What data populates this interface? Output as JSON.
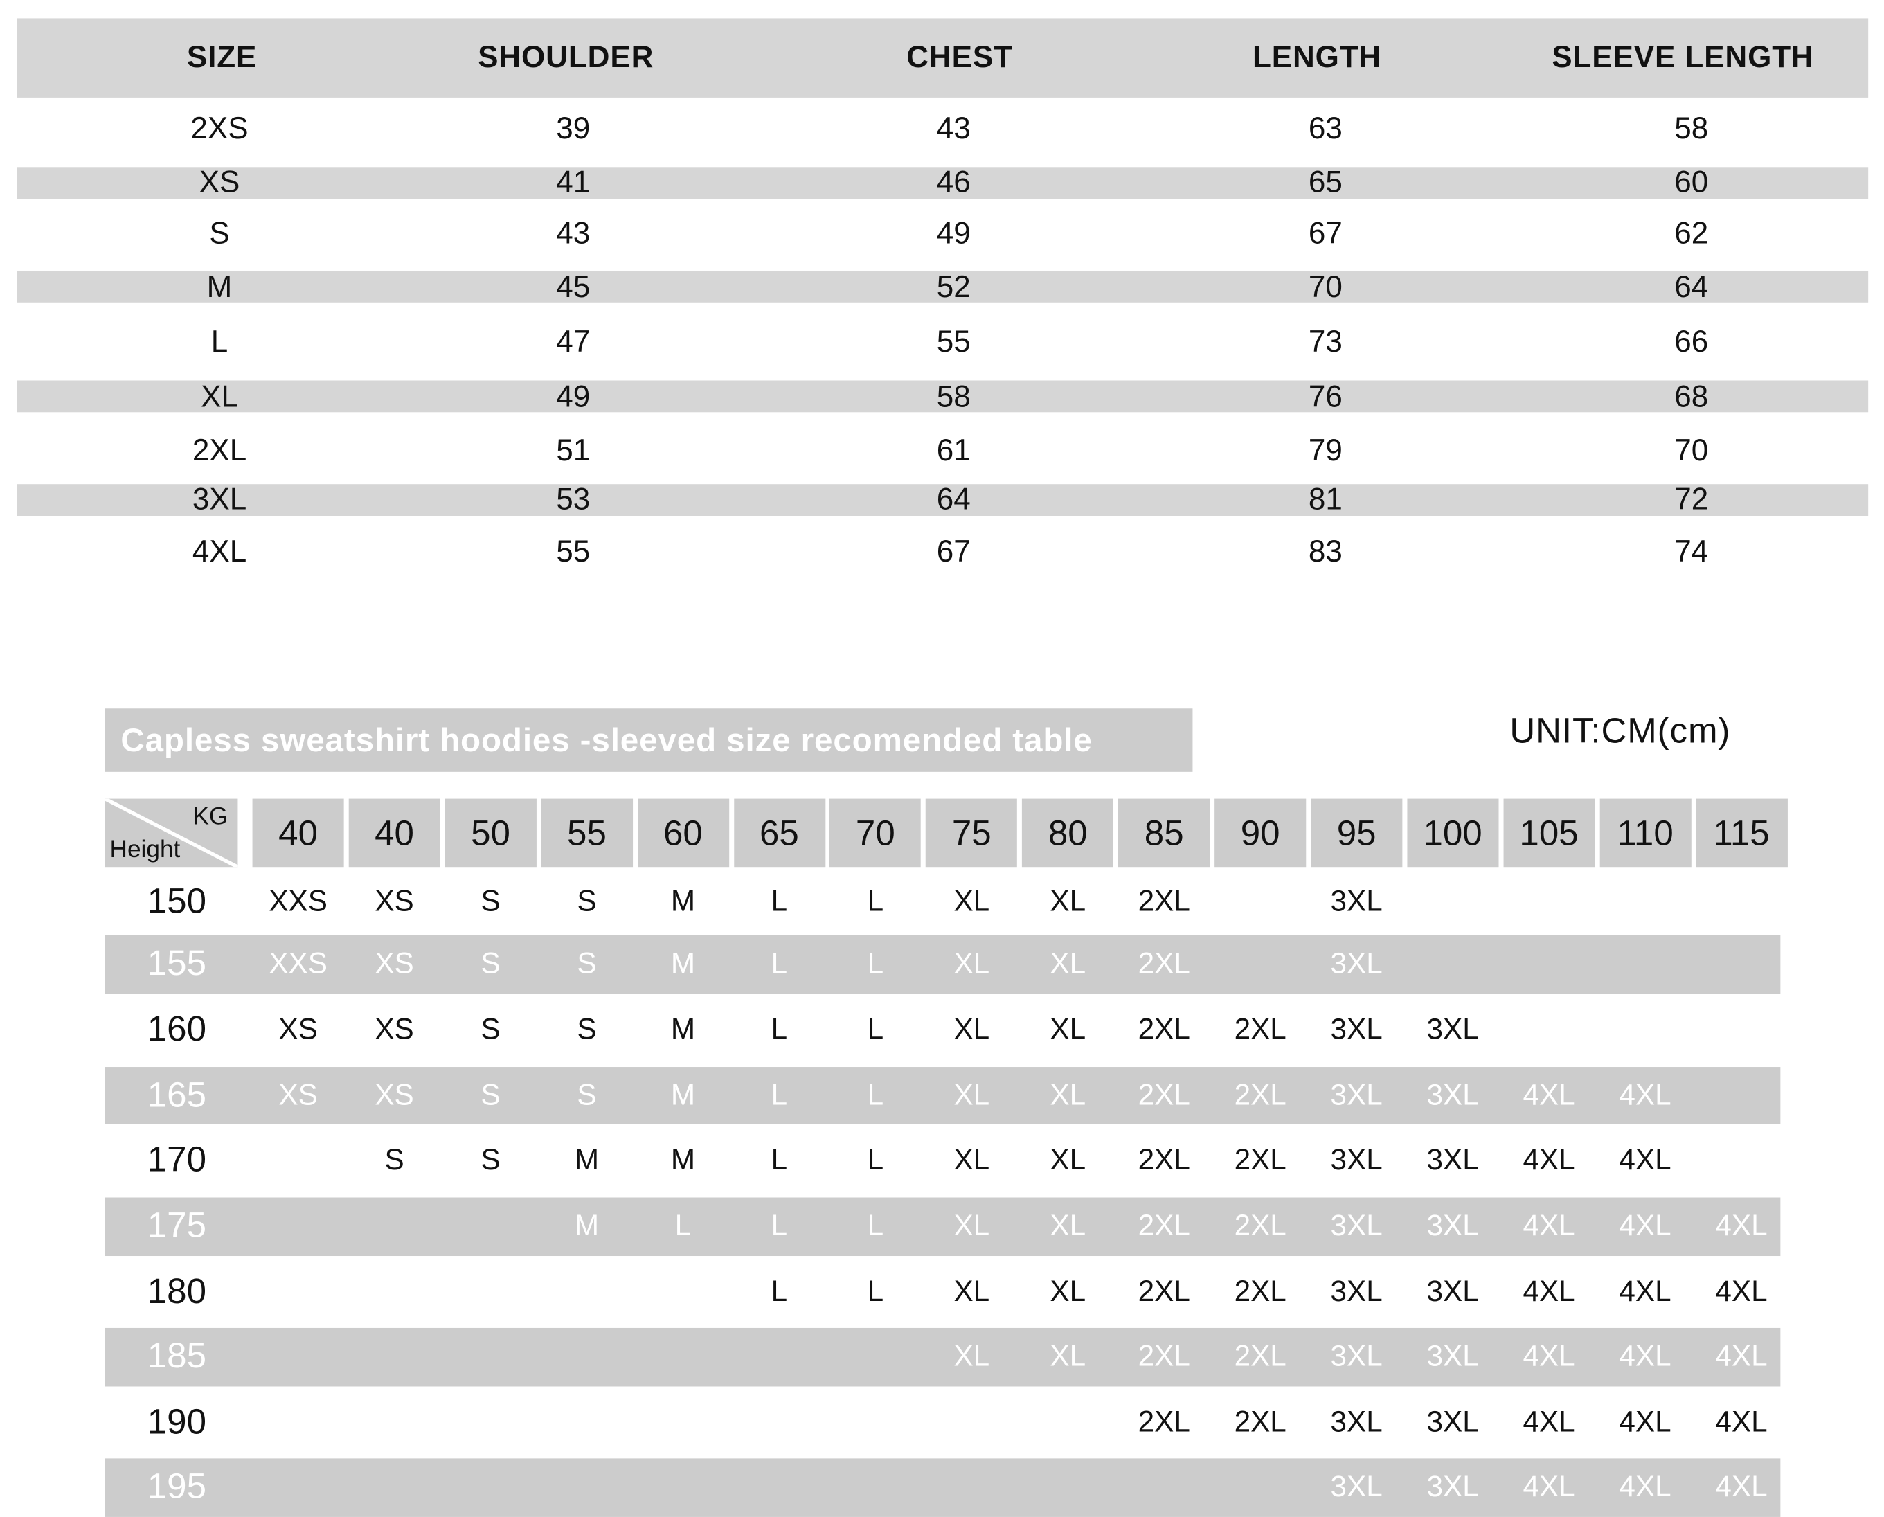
{
  "measurement_table": {
    "headers": [
      "SIZE",
      "SHOULDER",
      "CHEST",
      "LENGTH",
      "SLEEVE LENGTH"
    ],
    "rows": [
      [
        "2XS",
        "39",
        "43",
        "63",
        "58"
      ],
      [
        "XS",
        "41",
        "46",
        "65",
        "60"
      ],
      [
        "S",
        "43",
        "49",
        "67",
        "62"
      ],
      [
        "M",
        "45",
        "52",
        "70",
        "64"
      ],
      [
        "L",
        "47",
        "55",
        "73",
        "66"
      ],
      [
        "XL",
        "49",
        "58",
        "76",
        "68"
      ],
      [
        "2XL",
        "51",
        "61",
        "79",
        "70"
      ],
      [
        "3XL",
        "53",
        "64",
        "81",
        "72"
      ],
      [
        "4XL",
        "55",
        "67",
        "83",
        "74"
      ]
    ],
    "header_bg": "#d6d6d6"
  },
  "recommend_table": {
    "title": "Capless sweatshirt hoodies -sleeved size recomended table",
    "unit": "UNIT:CM(cm)",
    "corner_top": "KG",
    "corner_bottom": "Height",
    "weights": [
      "40",
      "40",
      "50",
      "55",
      "60",
      "65",
      "70",
      "75",
      "80",
      "85",
      "90",
      "95",
      "100",
      "105",
      "110",
      "115"
    ],
    "rows": [
      {
        "height": "150",
        "sizes": [
          "XXS",
          "XS",
          "S",
          "S",
          "M",
          "L",
          "L",
          "XL",
          "XL",
          "2XL",
          "",
          "3XL",
          "",
          "",
          "",
          ""
        ]
      },
      {
        "height": "155",
        "sizes": [
          "XXS",
          "XS",
          "S",
          "S",
          "M",
          "L",
          "L",
          "XL",
          "XL",
          "2XL",
          "",
          "3XL",
          "",
          "",
          "",
          ""
        ]
      },
      {
        "height": "160",
        "sizes": [
          "XS",
          "XS",
          "S",
          "S",
          "M",
          "L",
          "L",
          "XL",
          "XL",
          "2XL",
          "2XL",
          "3XL",
          "3XL",
          "",
          "",
          ""
        ]
      },
      {
        "height": "165",
        "sizes": [
          "XS",
          "XS",
          "S",
          "S",
          "M",
          "L",
          "L",
          "XL",
          "XL",
          "2XL",
          "2XL",
          "3XL",
          "3XL",
          "4XL",
          "4XL",
          ""
        ]
      },
      {
        "height": "170",
        "sizes": [
          "",
          "S",
          "S",
          "M",
          "M",
          "L",
          "L",
          "XL",
          "XL",
          "2XL",
          "2XL",
          "3XL",
          "3XL",
          "4XL",
          "4XL",
          ""
        ]
      },
      {
        "height": "175",
        "sizes": [
          "",
          "",
          "",
          "M",
          "L",
          "L",
          "L",
          "XL",
          "XL",
          "2XL",
          "2XL",
          "3XL",
          "3XL",
          "4XL",
          "4XL",
          "4XL"
        ]
      },
      {
        "height": "180",
        "sizes": [
          "",
          "",
          "",
          "",
          "",
          "L",
          "L",
          "XL",
          "XL",
          "2XL",
          "2XL",
          "3XL",
          "3XL",
          "4XL",
          "4XL",
          "4XL"
        ]
      },
      {
        "height": "185",
        "sizes": [
          "",
          "",
          "",
          "",
          "",
          "",
          "",
          "XL",
          "XL",
          "2XL",
          "2XL",
          "3XL",
          "3XL",
          "4XL",
          "4XL",
          "4XL"
        ]
      },
      {
        "height": "190",
        "sizes": [
          "",
          "",
          "",
          "",
          "",
          "",
          "",
          "",
          "",
          "2XL",
          "2XL",
          "3XL",
          "3XL",
          "4XL",
          "4XL",
          "4XL"
        ]
      },
      {
        "height": "195",
        "sizes": [
          "",
          "",
          "",
          "",
          "",
          "",
          "",
          "",
          "",
          "",
          "",
          "3XL",
          "3XL",
          "4XL",
          "4XL",
          "4XL"
        ]
      }
    ],
    "stripe_bg": "#cccccc"
  }
}
